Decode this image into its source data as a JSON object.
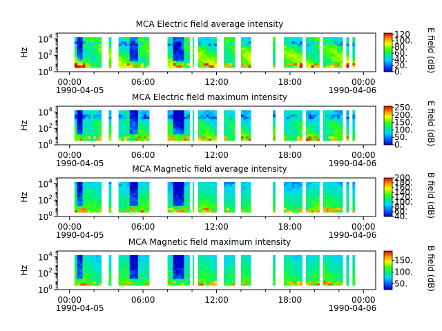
{
  "figure": {
    "x_tick_labels": [
      "00:00",
      "06:00",
      "12:00",
      "18:00",
      "00:00"
    ],
    "x_date_start": "1990-04-05",
    "x_date_end": "1990-04-06",
    "y_tick_base": "10",
    "y_tick_exponents": [
      "0",
      "2",
      "4"
    ]
  },
  "chart_data": [
    {
      "type": "heatmap",
      "title": "MCA  Electric field average intensity",
      "ylabel": "Hz",
      "yscale": "log",
      "ylim": [
        1,
        50000
      ],
      "xlim": [
        "1990-04-04 23:00",
        "1990-04-06 01:00"
      ],
      "x_ticks": [
        "1990-04-05 00:00",
        "1990-04-05 06:00",
        "1990-04-05 12:00",
        "1990-04-05 18:00",
        "1990-04-06 00:00"
      ],
      "colorbar": {
        "label": "E field (dB)",
        "range": [
          0,
          125
        ],
        "ticks": [
          "0.",
          "20.",
          "40.",
          "60.",
          "80.",
          "100.",
          "120"
        ],
        "colormap": "rainbow"
      },
      "data_segments_hours": [
        [
          0.4,
          2.6
        ],
        [
          3.2,
          3.4
        ],
        [
          4.0,
          6.5
        ],
        [
          8.0,
          9.8
        ],
        [
          10.05,
          10.15
        ],
        [
          10.5,
          12.0
        ],
        [
          12.6,
          13.5
        ],
        [
          14.0,
          14.8
        ],
        [
          16.6,
          16.8
        ],
        [
          17.5,
          19.0
        ],
        [
          19.3,
          20.4
        ],
        [
          20.7,
          22.3
        ],
        [
          22.6,
          22.8
        ],
        [
          23.1,
          23.3
        ]
      ],
      "palette": "average-electric"
    },
    {
      "type": "heatmap",
      "title": "MCA  Electric field maximum intensity",
      "ylabel": "Hz",
      "yscale": "log",
      "ylim": [
        1,
        50000
      ],
      "xlim": [
        "1990-04-04 23:00",
        "1990-04-06 01:00"
      ],
      "x_ticks": [
        "1990-04-05 00:00",
        "1990-04-05 06:00",
        "1990-04-05 12:00",
        "1990-04-05 18:00",
        "1990-04-06 00:00"
      ],
      "colorbar": {
        "label": "E field (dB)",
        "range": [
          0,
          260
        ],
        "ticks": [
          "0.",
          "50.",
          "100.",
          "150.",
          "200.",
          "250."
        ],
        "colormap": "rainbow"
      },
      "data_segments_hours": [
        [
          0.4,
          2.6
        ],
        [
          3.2,
          3.4
        ],
        [
          4.0,
          6.5
        ],
        [
          8.0,
          9.8
        ],
        [
          10.05,
          10.15
        ],
        [
          10.5,
          12.0
        ],
        [
          12.6,
          13.5
        ],
        [
          14.0,
          14.8
        ],
        [
          16.6,
          16.8
        ],
        [
          17.5,
          19.0
        ],
        [
          19.3,
          20.4
        ],
        [
          20.7,
          22.3
        ],
        [
          22.6,
          22.8
        ],
        [
          23.1,
          23.3
        ]
      ],
      "palette": "maximum-electric"
    },
    {
      "type": "heatmap",
      "title": "MCA  Magnetic field average intensity",
      "ylabel": "Hz",
      "yscale": "log",
      "ylim": [
        1,
        50000
      ],
      "xlim": [
        "1990-04-04 23:00",
        "1990-04-06 01:00"
      ],
      "x_ticks": [
        "1990-04-05 00:00",
        "1990-04-05 06:00",
        "1990-04-05 12:00",
        "1990-04-05 18:00",
        "1990-04-06 00:00"
      ],
      "colorbar": {
        "label": "B field (dB)",
        "range": [
          40,
          200
        ],
        "ticks": [
          "40.",
          "60.",
          "80.",
          "100.",
          "120.",
          "140.",
          "160.",
          "180.",
          "200."
        ],
        "colormap": "rainbow"
      },
      "data_segments_hours": [
        [
          0.4,
          2.6
        ],
        [
          3.2,
          3.4
        ],
        [
          4.0,
          6.5
        ],
        [
          8.0,
          9.8
        ],
        [
          10.05,
          10.15
        ],
        [
          10.5,
          12.0
        ],
        [
          12.6,
          13.5
        ],
        [
          14.0,
          14.8
        ],
        [
          16.6,
          16.8
        ],
        [
          17.5,
          19.0
        ],
        [
          19.3,
          20.4
        ],
        [
          20.7,
          22.3
        ],
        [
          22.6,
          22.8
        ],
        [
          23.1,
          23.3
        ]
      ],
      "palette": "average-magnetic"
    },
    {
      "type": "heatmap",
      "title": "MCA  Magnetic field maximum intensity",
      "ylabel": "Hz",
      "yscale": "log",
      "ylim": [
        1,
        50000
      ],
      "xlim": [
        "1990-04-04 23:00",
        "1990-04-06 01:00"
      ],
      "x_ticks": [
        "1990-04-05 00:00",
        "1990-04-05 06:00",
        "1990-04-05 12:00",
        "1990-04-05 18:00",
        "1990-04-06 00:00"
      ],
      "colorbar": {
        "label": "B field (dB)",
        "range": [
          25,
          190
        ],
        "ticks": [
          "50.",
          "100.",
          "150."
        ],
        "colormap": "rainbow"
      },
      "data_segments_hours": [
        [
          0.4,
          2.6
        ],
        [
          3.2,
          3.4
        ],
        [
          4.0,
          6.5
        ],
        [
          8.0,
          9.8
        ],
        [
          10.05,
          10.15
        ],
        [
          10.5,
          12.0
        ],
        [
          12.6,
          13.5
        ],
        [
          14.0,
          14.8
        ],
        [
          16.6,
          16.8
        ],
        [
          17.5,
          19.0
        ],
        [
          19.3,
          20.4
        ],
        [
          20.7,
          22.3
        ],
        [
          22.6,
          22.8
        ],
        [
          23.1,
          23.3
        ]
      ],
      "palette": "maximum-magnetic"
    }
  ]
}
